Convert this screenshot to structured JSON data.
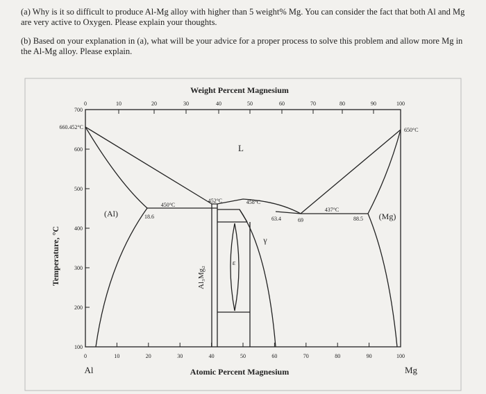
{
  "questions": [
    "(a) Why is it so difficult to produce Al-Mg alloy with higher than 5 weight% Mg. You can consider the fact that both Al and Mg are very active to Oxygen. Please explain your thoughts.",
    "(b) Based on your explanation in (a), what will be your advice for a proper process to solve this problem and allow more Mg in the Al-Mg alloy. Please explain."
  ],
  "diagram": {
    "top_axis_title": "Weight Percent Magnesium",
    "bottom_axis_title": "Atomic Percent Magnesium",
    "y_axis_title": "Temperature, °C",
    "top_ticks": [
      0,
      10,
      20,
      30,
      40,
      50,
      60,
      70,
      80,
      90,
      100
    ],
    "bottom_ticks": [
      0,
      10,
      20,
      30,
      40,
      50,
      60,
      70,
      80,
      90,
      100
    ],
    "y_ticks": [
      700,
      600,
      500,
      400,
      300,
      200,
      100
    ],
    "left_element": "Al",
    "right_element": "Mg",
    "labels": [
      "660.452°C",
      "650°C",
      "L",
      "(Al)",
      "450°C",
      "18.6",
      "452°C",
      "458°C",
      "63.4",
      "69",
      "437°C",
      "88.5",
      "(Mg)",
      "γ",
      "ε",
      "Al₃Mg₂"
    ]
  }
}
